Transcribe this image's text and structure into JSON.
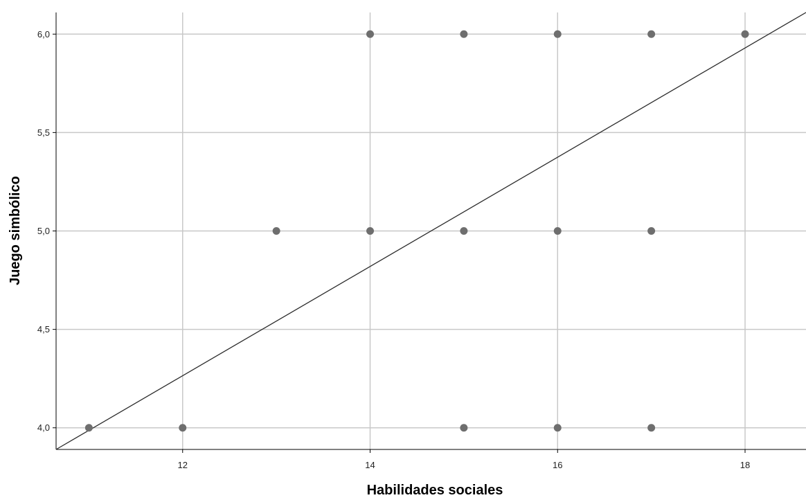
{
  "chart_data": {
    "type": "scatter",
    "title": "",
    "xlabel": "Habilidades sociales",
    "ylabel": "Juego simbólico",
    "xlim": [
      10.65,
      18.65
    ],
    "ylim": [
      3.89,
      6.11
    ],
    "x_ticks": [
      12,
      14,
      16,
      18
    ],
    "x_tick_labels": [
      "12",
      "14",
      "16",
      "18"
    ],
    "y_ticks": [
      4.0,
      4.5,
      5.0,
      5.5,
      6.0
    ],
    "y_tick_labels": [
      "4,0",
      "4,5",
      "5,0",
      "5,5",
      "6,0"
    ],
    "grid": true,
    "legend": "none",
    "points": [
      {
        "x": 11,
        "y": 4.0
      },
      {
        "x": 12,
        "y": 4.0
      },
      {
        "x": 15,
        "y": 4.0
      },
      {
        "x": 16,
        "y": 4.0
      },
      {
        "x": 17,
        "y": 4.0
      },
      {
        "x": 13,
        "y": 5.0
      },
      {
        "x": 14,
        "y": 5.0
      },
      {
        "x": 15,
        "y": 5.0
      },
      {
        "x": 16,
        "y": 5.0
      },
      {
        "x": 17,
        "y": 5.0
      },
      {
        "x": 14,
        "y": 6.0
      },
      {
        "x": 15,
        "y": 6.0
      },
      {
        "x": 16,
        "y": 6.0
      },
      {
        "x": 17,
        "y": 6.0
      },
      {
        "x": 18,
        "y": 6.0
      }
    ],
    "fit_line": {
      "x": [
        10.65,
        18.65
      ],
      "y": [
        3.89,
        6.11
      ]
    }
  },
  "colors": {
    "point": "#6e6e6e",
    "grid": "#c8c8c8",
    "axis": "#000000",
    "fit_line": "#2b2b2b"
  }
}
